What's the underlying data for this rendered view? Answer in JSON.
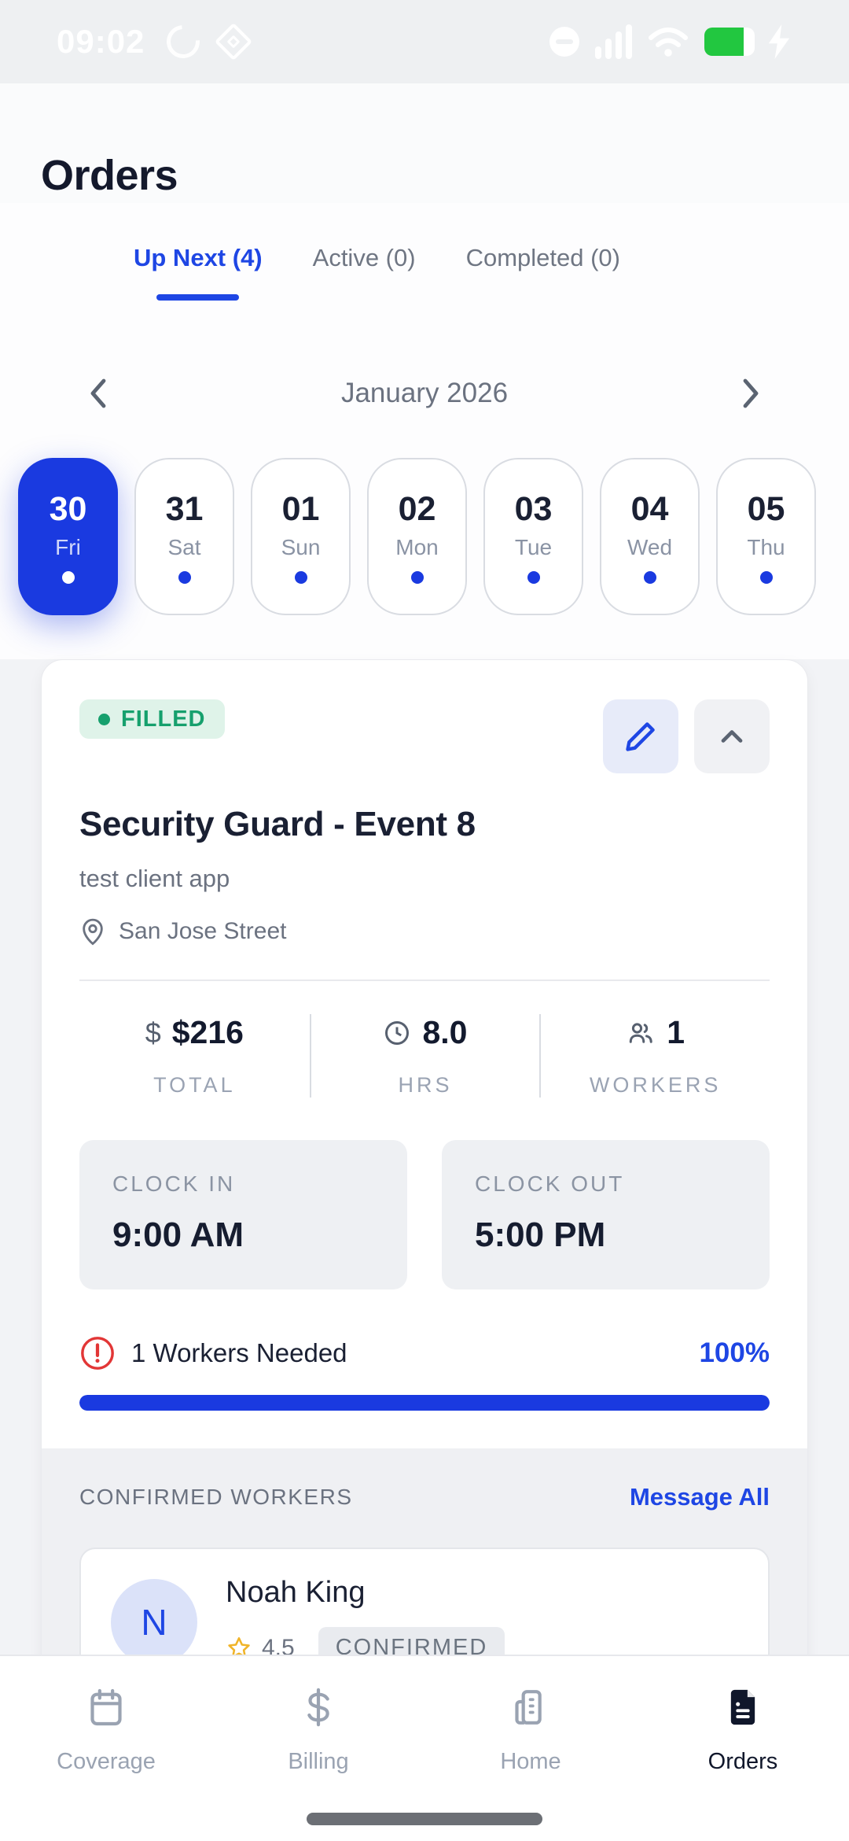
{
  "status_bar": {
    "time": "09:02"
  },
  "header": {
    "title": "Orders"
  },
  "tabs": [
    {
      "label": "Up Next (4)",
      "active": true
    },
    {
      "label": "Active (0)",
      "active": false
    },
    {
      "label": "Completed (0)",
      "active": false
    }
  ],
  "calendar": {
    "month": "January 2026",
    "prev_icon": "chevron-left-icon",
    "next_icon": "chevron-right-icon",
    "days": [
      {
        "date": "30",
        "day": "Fri",
        "selected": true
      },
      {
        "date": "31",
        "day": "Sat",
        "selected": false
      },
      {
        "date": "01",
        "day": "Sun",
        "selected": false
      },
      {
        "date": "02",
        "day": "Mon",
        "selected": false
      },
      {
        "date": "03",
        "day": "Tue",
        "selected": false
      },
      {
        "date": "04",
        "day": "Wed",
        "selected": false
      },
      {
        "date": "05",
        "day": "Thu",
        "selected": false
      }
    ]
  },
  "order_card": {
    "status": "FILLED",
    "title": "Security Guard - Event 8",
    "client": "test client app",
    "location": "San Jose Street",
    "stats": [
      {
        "icon": "dollar-icon",
        "value": "$216",
        "label": "TOTAL"
      },
      {
        "icon": "clock-icon",
        "value": "8.0",
        "label": "HRS"
      },
      {
        "icon": "people-icon",
        "value": "1",
        "label": "WORKERS"
      }
    ],
    "clock_in": {
      "label": "CLOCK IN",
      "value": "9:00 AM"
    },
    "clock_out": {
      "label": "CLOCK OUT",
      "value": "5:00 PM"
    },
    "workers_needed": "1 Workers Needed",
    "fill_percent": "100%",
    "progress": 100
  },
  "confirmed_workers": {
    "header": "CONFIRMED WORKERS",
    "action": "Message All",
    "workers": [
      {
        "initial": "N",
        "name": "Noah King",
        "rating": "4.5",
        "status": "CONFIRMED"
      }
    ]
  },
  "bottom_nav": [
    {
      "label": "Coverage",
      "icon": "calendar-icon",
      "active": false
    },
    {
      "label": "Billing",
      "icon": "dollar-icon",
      "active": false
    },
    {
      "label": "Home",
      "icon": "building-icon",
      "active": false
    },
    {
      "label": "Orders",
      "icon": "document-icon",
      "active": true
    }
  ],
  "colors": {
    "primary_blue": "#1a3ae0",
    "link_blue": "#1e46e4",
    "success_green": "#16a06d",
    "success_bg": "#dff3e9",
    "battery_green": "#22c740",
    "alert_red": "#e23636",
    "star_yellow": "#f0b429",
    "text_dark": "#1a2033",
    "text_gray": "#6b7280"
  }
}
